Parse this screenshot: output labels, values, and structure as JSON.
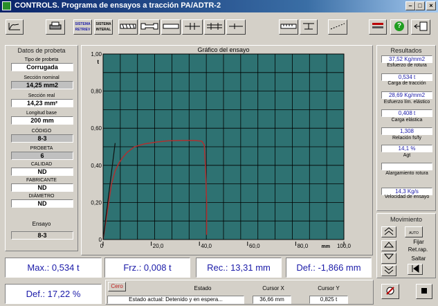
{
  "window": {
    "title": "CONTROLS. Programa de ensayos a tracción PA/ADTR-2"
  },
  "toolbar": {
    "sistema_label": "SISTEMA",
    "retr_label": "RETRIEV",
    "intr_label": "INTERAL",
    "help_label": "?"
  },
  "datos": {
    "title": "Datos de probeta",
    "tipo_label": "Tipo de probeta",
    "tipo_value": "Corrugada",
    "seccion_nominal_label": "Sección nominal",
    "seccion_nominal_value": "14,25 mm2",
    "seccion_real_label": "Sección real",
    "seccion_real_value": "14,23 mm²",
    "longitud_label": "Longitud base",
    "longitud_value": "200 mm",
    "codigo_label": "CÓDIGO",
    "codigo_value": "8-3",
    "probeta_label": "PROBETA",
    "probeta_value": "6",
    "calidad_label": "CALIDAD",
    "calidad_value": "ND",
    "fabricante_label": "FABRICANTE",
    "fabricante_value": "ND",
    "diametro_label": "DIÁMETRO",
    "diametro_value": "ND",
    "ensayo_label": "Ensayo",
    "ensayo_value": "8-3"
  },
  "chart_data": {
    "type": "line",
    "title": "Gráfico del ensayo",
    "xlabel": "mm",
    "ylabel": "t",
    "xlim": [
      0,
      100
    ],
    "ylim": [
      0,
      1.0
    ],
    "x_ticks": [
      "0",
      "20,0",
      "40,0",
      "60,0",
      "80,0",
      "100,0"
    ],
    "y_ticks": [
      "0",
      "0,20",
      "0,40",
      "0,60",
      "0,80",
      "1,00"
    ],
    "grid": true,
    "background": "#2e7272",
    "curve_color": "#b03030",
    "line_color": "#101010",
    "series": [
      {
        "x": [
          0,
          3.5,
          5,
          6.5,
          8,
          10,
          13,
          17,
          22,
          27,
          33,
          38,
          41,
          42,
          42.5,
          43,
          43
        ],
        "y": [
          0,
          0.3,
          0.37,
          0.41,
          0.44,
          0.47,
          0.5,
          0.515,
          0.525,
          0.532,
          0.534,
          0.534,
          0.53,
          0.51,
          0.4,
          0.2,
          0.025
        ]
      },
      {
        "x": [
          0,
          5
        ],
        "y": [
          0,
          0.52
        ]
      }
    ]
  },
  "resultados": {
    "title": "Resultados",
    "items": [
      {
        "value": "37,52 Kg/mm2",
        "label": "Esfuerzo de rotura"
      },
      {
        "value": "0,534 t",
        "label": "Carga de tracción"
      },
      {
        "value": "28,69 Kg/mm2",
        "label": "Esfuerzo lím. elástico"
      },
      {
        "value": "0,408 t",
        "label": "Carga elástica"
      },
      {
        "value": "1,308",
        "label": "Relación fs/fy"
      },
      {
        "value": "14,1 %",
        "label": "Agt"
      },
      {
        "value": "",
        "label": "Alargamiento rotura"
      },
      {
        "value": "14,3 Kg/s",
        "label": "Velocidad de ensayo"
      }
    ]
  },
  "movimiento": {
    "title": "Movimiento",
    "auto_label": "AUTO",
    "fijar_label": "Fijar",
    "retrap_label": "Ret.rap.",
    "saltar_label": "Saltar"
  },
  "bottom": {
    "max": "Max.: 0,534 t",
    "frz": "Frz.: 0,008 t",
    "rec": "Rec.: 13,31 mm",
    "def": "Def.: -1,866 mm",
    "def2": "Def.: 17,22 %",
    "cero_label": "Cero",
    "estado_label": "Estado",
    "estado_value": "Estado actual: Detenido y en espera...",
    "cursor_x_label": "Cursor X",
    "cursor_x_value": "36,66 mm",
    "cursor_y_label": "Cursor Y",
    "cursor_y_value": "0,825 t"
  }
}
